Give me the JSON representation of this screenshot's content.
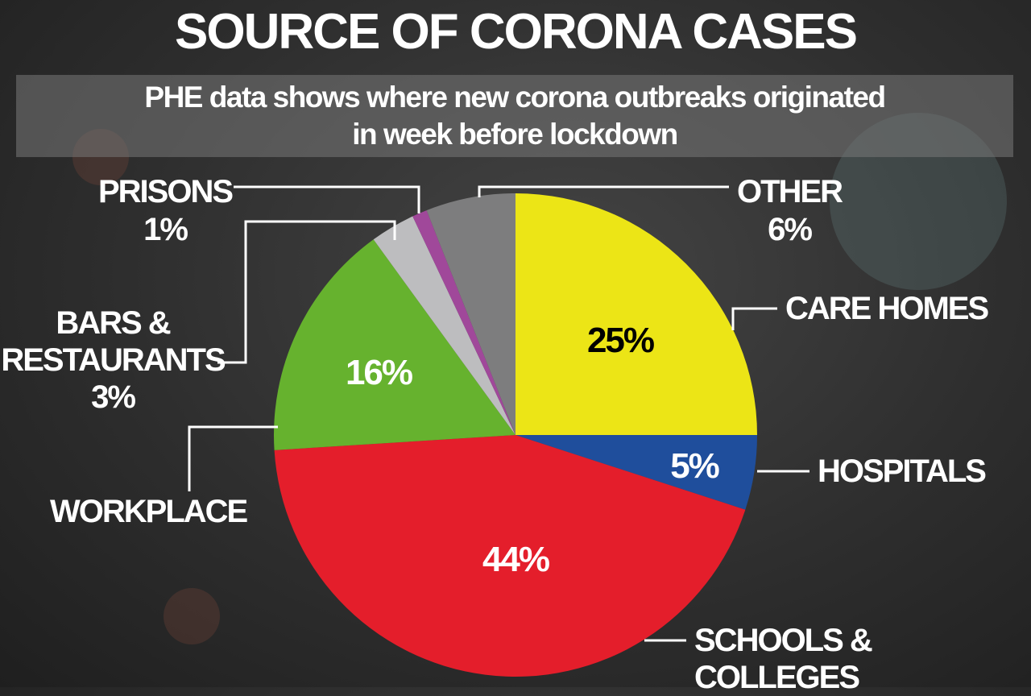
{
  "chart_data": {
    "type": "pie",
    "title": "SOURCE OF CORONA CASES",
    "subtitle": "PHE data shows where new corona outbreaks originated\nin week before lockdown",
    "categories": [
      "CARE HOMES",
      "HOSPITALS",
      "SCHOOLS & COLLEGES",
      "WORKPLACE",
      "BARS &\nRESTAURANTS",
      "PRISONS",
      "OTHER"
    ],
    "values": [
      25,
      5,
      44,
      16,
      3,
      1,
      6
    ],
    "value_labels": [
      "25%",
      "5%",
      "44%",
      "16%",
      "3%",
      "1%",
      "6%"
    ],
    "colors": [
      "#ece516",
      "#1f4e9c",
      "#e41e2b",
      "#66b22e",
      "#bdbdbf",
      "#a0489a",
      "#7d7d7e"
    ]
  }
}
